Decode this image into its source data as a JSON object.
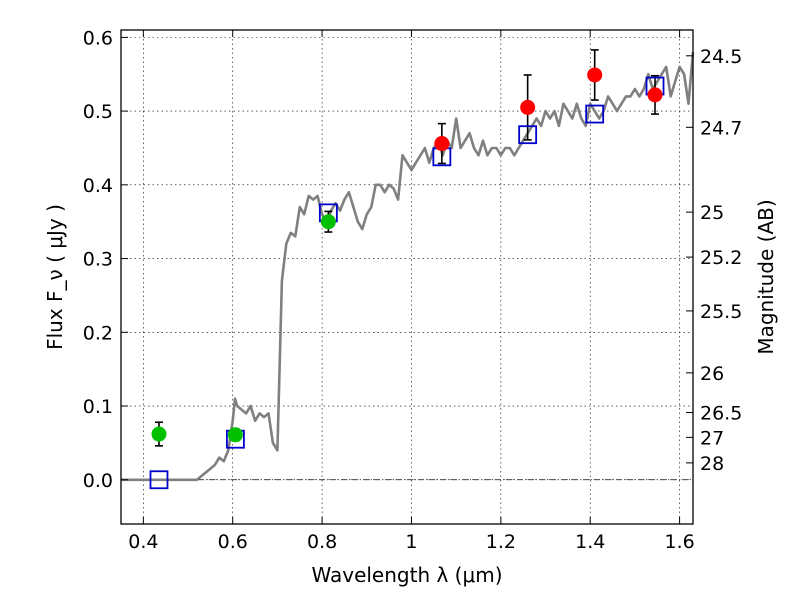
{
  "chart_data": {
    "type": "scatter",
    "xlabel": "Wavelength  λ (μm)",
    "ylabel": "Flux  F_ν  ( μJy )",
    "ylabel_right": "Magnitude (AB)",
    "xlim": [
      0.35,
      1.63
    ],
    "ylim": [
      -0.06,
      0.61
    ],
    "grid": true,
    "x_ticks": [
      0.4,
      0.6,
      0.8,
      1.0,
      1.2,
      1.4,
      1.6
    ],
    "x_tick_labels": [
      "0.4",
      "0.6",
      "0.8",
      "1",
      "1.2",
      "1.4",
      "1.6"
    ],
    "y_ticks": [
      0.0,
      0.1,
      0.2,
      0.3,
      0.4,
      0.5,
      0.6
    ],
    "y_tick_labels": [
      "0.0",
      "0.1",
      "0.2",
      "0.3",
      "0.4",
      "0.5",
      "0.6"
    ],
    "right_ticks": [
      {
        "label": "24.5",
        "flux": 0.575
      },
      {
        "label": "24.7",
        "flux": 0.478
      },
      {
        "label": "25",
        "flux": 0.363
      },
      {
        "label": "25.2",
        "flux": 0.302
      },
      {
        "label": "25.5",
        "flux": 0.229
      },
      {
        "label": "26",
        "flux": 0.145
      },
      {
        "label": "26.5",
        "flux": 0.0912
      },
      {
        "label": "27",
        "flux": 0.0575
      },
      {
        "label": "28",
        "flux": 0.0229
      }
    ],
    "colors": {
      "model": "#808080",
      "green": "#00c000",
      "red": "#ff0000",
      "squares": "#0000cc",
      "errorbar": "#000000",
      "zeroline": "#000000"
    },
    "series": [
      {
        "kind": "model",
        "points": [
          [
            0.35,
            0.0
          ],
          [
            0.5,
            0.0
          ],
          [
            0.52,
            0.0
          ],
          [
            0.54,
            0.01
          ],
          [
            0.56,
            0.02
          ],
          [
            0.57,
            0.03
          ],
          [
            0.58,
            0.025
          ],
          [
            0.59,
            0.04
          ],
          [
            0.6,
            0.08
          ],
          [
            0.605,
            0.11
          ],
          [
            0.61,
            0.1
          ],
          [
            0.62,
            0.095
          ],
          [
            0.63,
            0.09
          ],
          [
            0.64,
            0.1
          ],
          [
            0.65,
            0.08
          ],
          [
            0.66,
            0.09
          ],
          [
            0.67,
            0.085
          ],
          [
            0.68,
            0.09
          ],
          [
            0.69,
            0.05
          ],
          [
            0.7,
            0.04
          ],
          [
            0.71,
            0.27
          ],
          [
            0.72,
            0.32
          ],
          [
            0.73,
            0.335
          ],
          [
            0.74,
            0.33
          ],
          [
            0.75,
            0.37
          ],
          [
            0.76,
            0.36
          ],
          [
            0.77,
            0.385
          ],
          [
            0.78,
            0.38
          ],
          [
            0.79,
            0.385
          ],
          [
            0.8,
            0.36
          ],
          [
            0.81,
            0.345
          ],
          [
            0.82,
            0.365
          ],
          [
            0.83,
            0.375
          ],
          [
            0.84,
            0.365
          ],
          [
            0.85,
            0.38
          ],
          [
            0.86,
            0.39
          ],
          [
            0.87,
            0.37
          ],
          [
            0.88,
            0.35
          ],
          [
            0.89,
            0.34
          ],
          [
            0.9,
            0.36
          ],
          [
            0.91,
            0.37
          ],
          [
            0.92,
            0.4
          ],
          [
            0.93,
            0.4
          ],
          [
            0.94,
            0.39
          ],
          [
            0.95,
            0.4
          ],
          [
            0.96,
            0.395
          ],
          [
            0.97,
            0.38
          ],
          [
            0.98,
            0.44
          ],
          [
            0.99,
            0.43
          ],
          [
            1.0,
            0.42
          ],
          [
            1.01,
            0.43
          ],
          [
            1.02,
            0.44
          ],
          [
            1.03,
            0.45
          ],
          [
            1.04,
            0.43
          ],
          [
            1.05,
            0.45
          ],
          [
            1.06,
            0.46
          ],
          [
            1.07,
            0.44
          ],
          [
            1.08,
            0.46
          ],
          [
            1.09,
            0.45
          ],
          [
            1.1,
            0.49
          ],
          [
            1.11,
            0.45
          ],
          [
            1.12,
            0.46
          ],
          [
            1.13,
            0.47
          ],
          [
            1.14,
            0.45
          ],
          [
            1.15,
            0.44
          ],
          [
            1.16,
            0.46
          ],
          [
            1.17,
            0.44
          ],
          [
            1.18,
            0.45
          ],
          [
            1.19,
            0.45
          ],
          [
            1.2,
            0.44
          ],
          [
            1.21,
            0.45
          ],
          [
            1.22,
            0.45
          ],
          [
            1.23,
            0.44
          ],
          [
            1.24,
            0.45
          ],
          [
            1.25,
            0.46
          ],
          [
            1.26,
            0.47
          ],
          [
            1.27,
            0.48
          ],
          [
            1.28,
            0.49
          ],
          [
            1.29,
            0.48
          ],
          [
            1.3,
            0.5
          ],
          [
            1.31,
            0.49
          ],
          [
            1.32,
            0.5
          ],
          [
            1.33,
            0.48
          ],
          [
            1.34,
            0.51
          ],
          [
            1.35,
            0.5
          ],
          [
            1.36,
            0.49
          ],
          [
            1.37,
            0.51
          ],
          [
            1.38,
            0.49
          ],
          [
            1.39,
            0.48
          ],
          [
            1.4,
            0.51
          ],
          [
            1.41,
            0.5
          ],
          [
            1.42,
            0.49
          ],
          [
            1.43,
            0.5
          ],
          [
            1.44,
            0.52
          ],
          [
            1.45,
            0.51
          ],
          [
            1.46,
            0.5
          ],
          [
            1.47,
            0.51
          ],
          [
            1.48,
            0.52
          ],
          [
            1.49,
            0.52
          ],
          [
            1.5,
            0.53
          ],
          [
            1.51,
            0.52
          ],
          [
            1.52,
            0.53
          ],
          [
            1.53,
            0.55
          ],
          [
            1.54,
            0.53
          ],
          [
            1.55,
            0.54
          ],
          [
            1.56,
            0.55
          ],
          [
            1.57,
            0.56
          ],
          [
            1.58,
            0.52
          ],
          [
            1.59,
            0.54
          ],
          [
            1.6,
            0.56
          ],
          [
            1.61,
            0.55
          ],
          [
            1.62,
            0.51
          ],
          [
            1.63,
            0.58
          ]
        ]
      },
      {
        "kind": "green",
        "points": [
          {
            "x": 0.435,
            "y": 0.062,
            "err": 0.016
          },
          {
            "x": 0.606,
            "y": 0.061,
            "err": 0.008
          },
          {
            "x": 0.814,
            "y": 0.35,
            "err": 0.014
          }
        ]
      },
      {
        "kind": "red",
        "points": [
          {
            "x": 1.068,
            "y": 0.456,
            "err": 0.027
          },
          {
            "x": 1.26,
            "y": 0.505,
            "err": 0.044
          },
          {
            "x": 1.41,
            "y": 0.549,
            "err": 0.034
          },
          {
            "x": 1.545,
            "y": 0.522,
            "err": 0.026
          }
        ]
      },
      {
        "kind": "squares",
        "points": [
          {
            "x": 0.435,
            "y": 0.0
          },
          {
            "x": 0.606,
            "y": 0.055
          },
          {
            "x": 0.814,
            "y": 0.362
          },
          {
            "x": 1.068,
            "y": 0.438
          },
          {
            "x": 1.26,
            "y": 0.468
          },
          {
            "x": 1.41,
            "y": 0.496
          },
          {
            "x": 1.545,
            "y": 0.534
          }
        ]
      }
    ]
  }
}
